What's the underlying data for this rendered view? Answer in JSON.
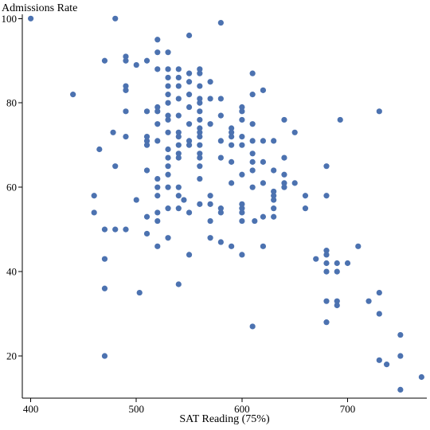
{
  "chart_data": {
    "type": "scatter",
    "title": "",
    "xlabel": "SAT Reading (75%)",
    "ylabel": "Admissions Rate",
    "xlim": [
      392,
      775
    ],
    "ylim": [
      10,
      101
    ],
    "xticks": [
      400,
      500,
      600,
      700
    ],
    "yticks": [
      20,
      40,
      60,
      80,
      100
    ],
    "grid": false,
    "legend": "none",
    "point_color": "#4c72b0",
    "points": [
      [
        400,
        100
      ],
      [
        440,
        82
      ],
      [
        460,
        58
      ],
      [
        460,
        54
      ],
      [
        465,
        69
      ],
      [
        470,
        90
      ],
      [
        470,
        50
      ],
      [
        470,
        43
      ],
      [
        470,
        36
      ],
      [
        470,
        20
      ],
      [
        478,
        73
      ],
      [
        480,
        100
      ],
      [
        480,
        65
      ],
      [
        480,
        50
      ],
      [
        490,
        91
      ],
      [
        490,
        90
      ],
      [
        490,
        84
      ],
      [
        490,
        83
      ],
      [
        490,
        78
      ],
      [
        490,
        72
      ],
      [
        490,
        50
      ],
      [
        500,
        89
      ],
      [
        500,
        57
      ],
      [
        503,
        35
      ],
      [
        510,
        90
      ],
      [
        510,
        78
      ],
      [
        510,
        72
      ],
      [
        510,
        71
      ],
      [
        510,
        70
      ],
      [
        510,
        64
      ],
      [
        510,
        53
      ],
      [
        510,
        49
      ],
      [
        520,
        95
      ],
      [
        520,
        92
      ],
      [
        520,
        88
      ],
      [
        520,
        79
      ],
      [
        520,
        78
      ],
      [
        520,
        75
      ],
      [
        520,
        71
      ],
      [
        520,
        62
      ],
      [
        520,
        60
      ],
      [
        520,
        58
      ],
      [
        520,
        54
      ],
      [
        520,
        52
      ],
      [
        520,
        46
      ],
      [
        530,
        92
      ],
      [
        530,
        88
      ],
      [
        530,
        86
      ],
      [
        530,
        84
      ],
      [
        530,
        82
      ],
      [
        530,
        80
      ],
      [
        530,
        77
      ],
      [
        530,
        76
      ],
      [
        530,
        73
      ],
      [
        530,
        69
      ],
      [
        530,
        67
      ],
      [
        530,
        65
      ],
      [
        530,
        63
      ],
      [
        530,
        60
      ],
      [
        530,
        55
      ],
      [
        530,
        48
      ],
      [
        540,
        88
      ],
      [
        540,
        86
      ],
      [
        540,
        84
      ],
      [
        540,
        81
      ],
      [
        540,
        77
      ],
      [
        540,
        73
      ],
      [
        540,
        72
      ],
      [
        540,
        70
      ],
      [
        540,
        68
      ],
      [
        540,
        67
      ],
      [
        540,
        60
      ],
      [
        540,
        58
      ],
      [
        540,
        55
      ],
      [
        540,
        37
      ],
      [
        545,
        57
      ],
      [
        550,
        96
      ],
      [
        550,
        87
      ],
      [
        550,
        85
      ],
      [
        550,
        82
      ],
      [
        550,
        79
      ],
      [
        550,
        75
      ],
      [
        550,
        71
      ],
      [
        550,
        70
      ],
      [
        550,
        54
      ],
      [
        550,
        44
      ],
      [
        560,
        88
      ],
      [
        560,
        87
      ],
      [
        560,
        84
      ],
      [
        560,
        81
      ],
      [
        560,
        80
      ],
      [
        560,
        78
      ],
      [
        560,
        76
      ],
      [
        560,
        74
      ],
      [
        560,
        73
      ],
      [
        560,
        72
      ],
      [
        560,
        70
      ],
      [
        560,
        68
      ],
      [
        560,
        67
      ],
      [
        560,
        65
      ],
      [
        560,
        62
      ],
      [
        560,
        56
      ],
      [
        570,
        85
      ],
      [
        570,
        81
      ],
      [
        570,
        75
      ],
      [
        570,
        58
      ],
      [
        570,
        56
      ],
      [
        570,
        52
      ],
      [
        570,
        48
      ],
      [
        580,
        99
      ],
      [
        580,
        81
      ],
      [
        580,
        77
      ],
      [
        580,
        71
      ],
      [
        580,
        67
      ],
      [
        580,
        55
      ],
      [
        580,
        54
      ],
      [
        580,
        47
      ],
      [
        590,
        74
      ],
      [
        590,
        73
      ],
      [
        590,
        72
      ],
      [
        590,
        70
      ],
      [
        590,
        66
      ],
      [
        590,
        61
      ],
      [
        590,
        46
      ],
      [
        600,
        79
      ],
      [
        600,
        78
      ],
      [
        600,
        76
      ],
      [
        600,
        72
      ],
      [
        600,
        70
      ],
      [
        600,
        63
      ],
      [
        600,
        56
      ],
      [
        600,
        55
      ],
      [
        600,
        54
      ],
      [
        600,
        52
      ],
      [
        600,
        44
      ],
      [
        610,
        87
      ],
      [
        610,
        82
      ],
      [
        610,
        75
      ],
      [
        610,
        71
      ],
      [
        610,
        68
      ],
      [
        610,
        66
      ],
      [
        610,
        64
      ],
      [
        610,
        60
      ],
      [
        610,
        27
      ],
      [
        612,
        52
      ],
      [
        620,
        83
      ],
      [
        620,
        71
      ],
      [
        620,
        66
      ],
      [
        620,
        61
      ],
      [
        620,
        53
      ],
      [
        620,
        46
      ],
      [
        630,
        71
      ],
      [
        630,
        64
      ],
      [
        630,
        59
      ],
      [
        630,
        58
      ],
      [
        630,
        57
      ],
      [
        630,
        55
      ],
      [
        630,
        53
      ],
      [
        640,
        76
      ],
      [
        640,
        67
      ],
      [
        640,
        63
      ],
      [
        640,
        61
      ],
      [
        640,
        60
      ],
      [
        650,
        73
      ],
      [
        650,
        61
      ],
      [
        660,
        58
      ],
      [
        660,
        55
      ],
      [
        670,
        43
      ],
      [
        680,
        65
      ],
      [
        680,
        58
      ],
      [
        680,
        45
      ],
      [
        680,
        44
      ],
      [
        680,
        42
      ],
      [
        680,
        40
      ],
      [
        680,
        33
      ],
      [
        680,
        28
      ],
      [
        690,
        42
      ],
      [
        690,
        40
      ],
      [
        690,
        33
      ],
      [
        690,
        32
      ],
      [
        693,
        76
      ],
      [
        700,
        42
      ],
      [
        710,
        46
      ],
      [
        720,
        33
      ],
      [
        730,
        78
      ],
      [
        730,
        35
      ],
      [
        730,
        30
      ],
      [
        730,
        19
      ],
      [
        737,
        18
      ],
      [
        750,
        25
      ],
      [
        750,
        20
      ],
      [
        750,
        12
      ],
      [
        770,
        15
      ]
    ]
  }
}
